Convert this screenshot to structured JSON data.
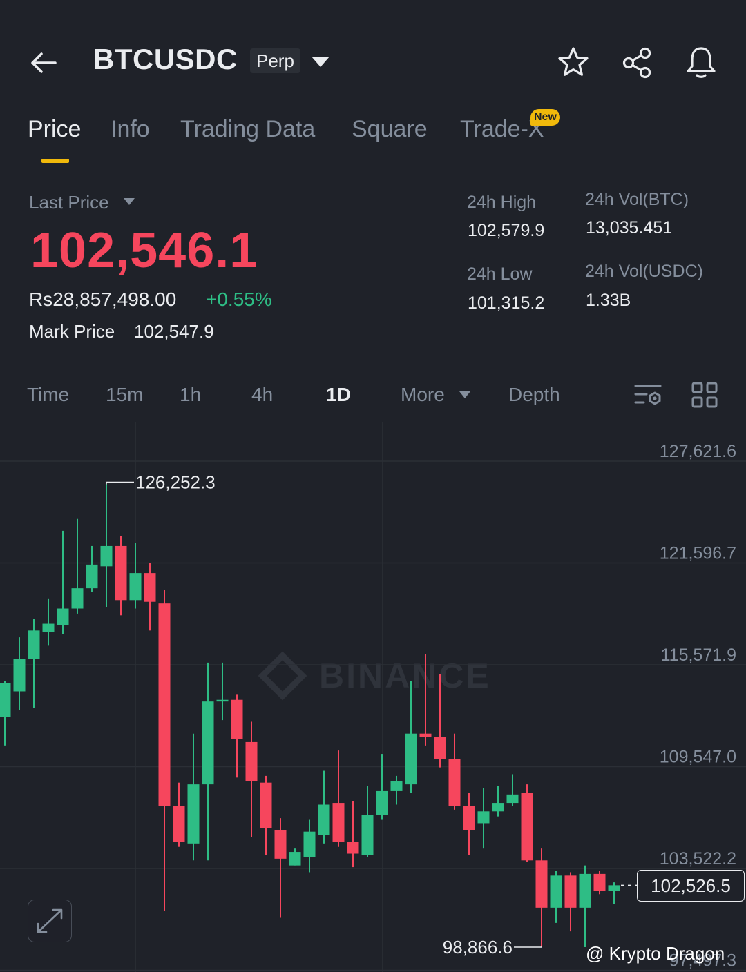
{
  "header": {
    "symbol": "BTCUSDC",
    "badge": "Perp",
    "icons": [
      "back-arrow-icon",
      "chevron-down-icon",
      "star-icon",
      "share-icon",
      "bell-icon"
    ]
  },
  "tabs": {
    "items": [
      {
        "label": "Price",
        "active": true
      },
      {
        "label": "Info"
      },
      {
        "label": "Trading Data"
      },
      {
        "label": "Square"
      },
      {
        "label": "Trade-X",
        "badge": "New"
      }
    ]
  },
  "price": {
    "last_label": "Last Price",
    "last_value": "102,546.1",
    "fiat_value": "Rs28,857,498.00",
    "change": "+0.55%",
    "mark_label": "Mark Price",
    "mark_value": "102,547.9"
  },
  "stats": {
    "high_label": "24h High",
    "high_value": "102,579.9",
    "low_label": "24h Low",
    "low_value": "101,315.2",
    "vol_btc_label": "24h Vol(BTC)",
    "vol_btc_value": "13,035.451",
    "vol_usdc_label": "24h Vol(USDC)",
    "vol_usdc_value": "1.33B"
  },
  "intervals": {
    "time": "Time",
    "m15": "15m",
    "h1": "1h",
    "h4": "4h",
    "d1": "1D",
    "more": "More",
    "depth": "Depth",
    "active": "1D"
  },
  "colors": {
    "up": "#2ebd85",
    "down": "#f6465d",
    "accent": "#f0b90b",
    "background": "#1f2229",
    "muted": "#848e9c"
  },
  "watermark": "BINANCE",
  "credit": "@ Krypto Dragon",
  "chart_data": {
    "type": "candlestick",
    "interval": "1D",
    "y_ticks": [
      "127,621.6",
      "121,596.7",
      "115,571.9",
      "109,547.0",
      "103,522.2",
      "97,497.3"
    ],
    "y_tick_values": [
      127621.6,
      121596.7,
      115571.9,
      109547.0,
      103522.2,
      97497.3
    ],
    "high_annotation": "126,252.3",
    "high_value": 126252.3,
    "low_annotation": "98,866.6",
    "low_value": 98866.6,
    "current_price_label": "102,526.5",
    "current_price": 102526.5,
    "candles": [
      {
        "o": 112500,
        "h": 114600,
        "c": 114500,
        "l": 110800
      },
      {
        "o": 114000,
        "h": 117200,
        "c": 115900,
        "l": 112900
      },
      {
        "o": 115900,
        "h": 118300,
        "c": 117600,
        "l": 113000
      },
      {
        "o": 117500,
        "h": 119500,
        "c": 118000,
        "l": 116700
      },
      {
        "o": 117900,
        "h": 123500,
        "c": 118900,
        "l": 117400
      },
      {
        "o": 118900,
        "h": 124200,
        "c": 120100,
        "l": 118600
      },
      {
        "o": 120100,
        "h": 122600,
        "c": 121500,
        "l": 119900
      },
      {
        "o": 121400,
        "h": 126252,
        "c": 122600,
        "l": 119000
      },
      {
        "o": 122600,
        "h": 123200,
        "c": 119400,
        "l": 118500
      },
      {
        "o": 119400,
        "h": 122800,
        "c": 121000,
        "l": 118900
      },
      {
        "o": 121000,
        "h": 121600,
        "c": 119300,
        "l": 117600
      },
      {
        "o": 119200,
        "h": 120000,
        "c": 107200,
        "l": 101000
      },
      {
        "o": 107200,
        "h": 108600,
        "c": 105100,
        "l": 104800
      },
      {
        "o": 105000,
        "h": 111500,
        "c": 108500,
        "l": 104000
      },
      {
        "o": 108500,
        "h": 115700,
        "c": 113400,
        "l": 104000
      },
      {
        "o": 113400,
        "h": 115700,
        "c": 113500,
        "l": 112300
      },
      {
        "o": 113500,
        "h": 113800,
        "c": 111200,
        "l": 108900
      },
      {
        "o": 111000,
        "h": 112200,
        "c": 108700,
        "l": 105400
      },
      {
        "o": 108600,
        "h": 109000,
        "c": 105900,
        "l": 104300
      },
      {
        "o": 105800,
        "h": 106500,
        "c": 104100,
        "l": 100600
      },
      {
        "o": 103700,
        "h": 104700,
        "c": 104500,
        "l": 103700
      },
      {
        "o": 104200,
        "h": 106400,
        "c": 105700,
        "l": 103300
      },
      {
        "o": 105500,
        "h": 109300,
        "c": 107300,
        "l": 105000
      },
      {
        "o": 107400,
        "h": 110500,
        "c": 105100,
        "l": 104800
      },
      {
        "o": 105100,
        "h": 107500,
        "c": 104400,
        "l": 103600
      },
      {
        "o": 104300,
        "h": 108400,
        "c": 106700,
        "l": 104200
      },
      {
        "o": 106700,
        "h": 110300,
        "c": 108100,
        "l": 106400
      },
      {
        "o": 108100,
        "h": 109000,
        "c": 108700,
        "l": 107300
      },
      {
        "o": 108500,
        "h": 114600,
        "c": 111500,
        "l": 108000
      },
      {
        "o": 111500,
        "h": 116200,
        "c": 111300,
        "l": 110800
      },
      {
        "o": 111300,
        "h": 115000,
        "c": 110000,
        "l": 109500
      },
      {
        "o": 110000,
        "h": 111500,
        "c": 107200,
        "l": 107000
      },
      {
        "o": 107200,
        "h": 108000,
        "c": 105800,
        "l": 104300
      },
      {
        "o": 106200,
        "h": 108300,
        "c": 106900,
        "l": 104700
      },
      {
        "o": 106900,
        "h": 108400,
        "c": 107400,
        "l": 106600
      },
      {
        "o": 107400,
        "h": 109100,
        "c": 107900,
        "l": 107200
      },
      {
        "o": 108000,
        "h": 108500,
        "c": 104000,
        "l": 103900
      },
      {
        "o": 104000,
        "h": 104700,
        "c": 101200,
        "l": 98866.6
      },
      {
        "o": 101200,
        "h": 103400,
        "c": 103100,
        "l": 100300
      },
      {
        "o": 103100,
        "h": 103300,
        "c": 101200,
        "l": 99800
      },
      {
        "o": 101200,
        "h": 103700,
        "c": 103200,
        "l": 98866.6
      },
      {
        "o": 103200,
        "h": 103400,
        "c": 102200,
        "l": 102000
      },
      {
        "o": 102200,
        "h": 102700,
        "c": 102526.5,
        "l": 101400
      }
    ]
  }
}
